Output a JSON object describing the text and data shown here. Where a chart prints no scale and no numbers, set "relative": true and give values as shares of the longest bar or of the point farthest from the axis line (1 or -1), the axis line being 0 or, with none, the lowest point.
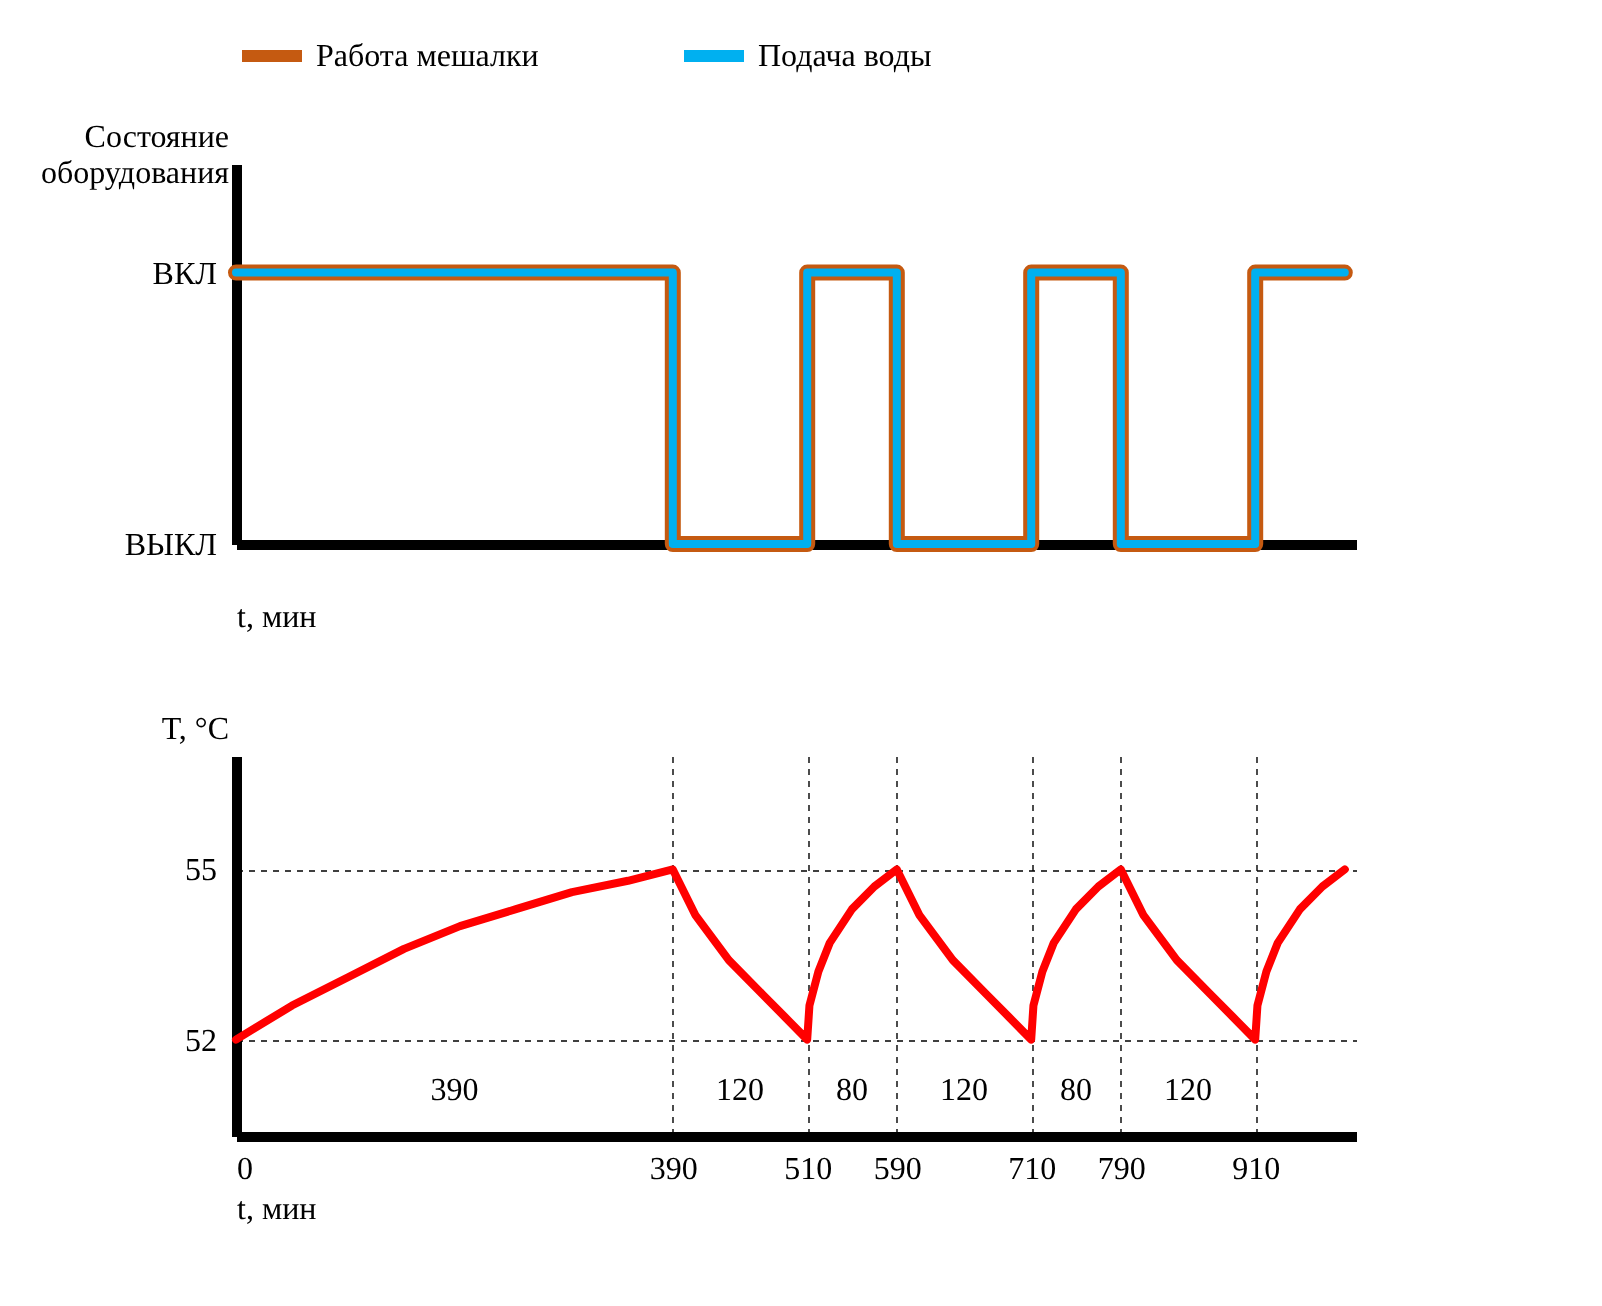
{
  "chart_data": [
    {
      "type": "step",
      "ylabel": "Состояние оборудования",
      "xlabel": "t, мин",
      "legend": "top",
      "tick_labels": "y",
      "grid": false,
      "relative": true,
      "annotations": [
        "ВКЛ",
        "ВЫКЛ"
      ],
      "x": [
        0,
        390,
        510,
        590,
        710,
        790,
        910,
        990
      ],
      "xlim": [
        0,
        1000
      ],
      "xticks": [
        0,
        390,
        510,
        590,
        710,
        790,
        910
      ],
      "series": [
        {
          "name": "Работа мешалки",
          "color": "#c55a11",
          "values": [
            1,
            0,
            1,
            0,
            1,
            0,
            1,
            1
          ]
        },
        {
          "name": "Подача воды",
          "color": "#00b0f0",
          "values": [
            1,
            0,
            1,
            0,
            1,
            0,
            1,
            1
          ]
        }
      ]
    },
    {
      "type": "line",
      "ylabel": "T, °C",
      "xlabel": "t, мин",
      "grid": true,
      "xlim": [
        0,
        1000
      ],
      "ylim": [
        50.3,
        57
      ],
      "xticks": [
        0,
        390,
        510,
        590,
        710,
        790,
        910
      ],
      "yticks": [
        52,
        55
      ],
      "series": [
        {
          "color": "#ff0000",
          "x": [
            0,
            50,
            100,
            150,
            200,
            250,
            300,
            350,
            390,
            410,
            440,
            470,
            490,
            510,
            512,
            520,
            530,
            550,
            570,
            590,
            610,
            640,
            670,
            690,
            710,
            712,
            720,
            730,
            750,
            770,
            790,
            810,
            840,
            870,
            890,
            910,
            912,
            920,
            930,
            950,
            970,
            990
          ],
          "values": [
            52,
            52.6,
            53.1,
            53.6,
            54.0,
            54.3,
            54.6,
            54.8,
            55,
            54.2,
            53.4,
            52.8,
            52.4,
            52,
            52.6,
            53.2,
            53.7,
            54.3,
            54.7,
            55,
            54.2,
            53.4,
            52.8,
            52.4,
            52,
            52.6,
            53.2,
            53.7,
            54.3,
            54.7,
            55,
            54.2,
            53.4,
            52.8,
            52.4,
            52,
            52.6,
            53.2,
            53.7,
            54.3,
            54.7,
            55
          ]
        }
      ],
      "annotations": [
        "390",
        "120",
        "80",
        "120",
        "80",
        "120"
      ]
    }
  ]
}
